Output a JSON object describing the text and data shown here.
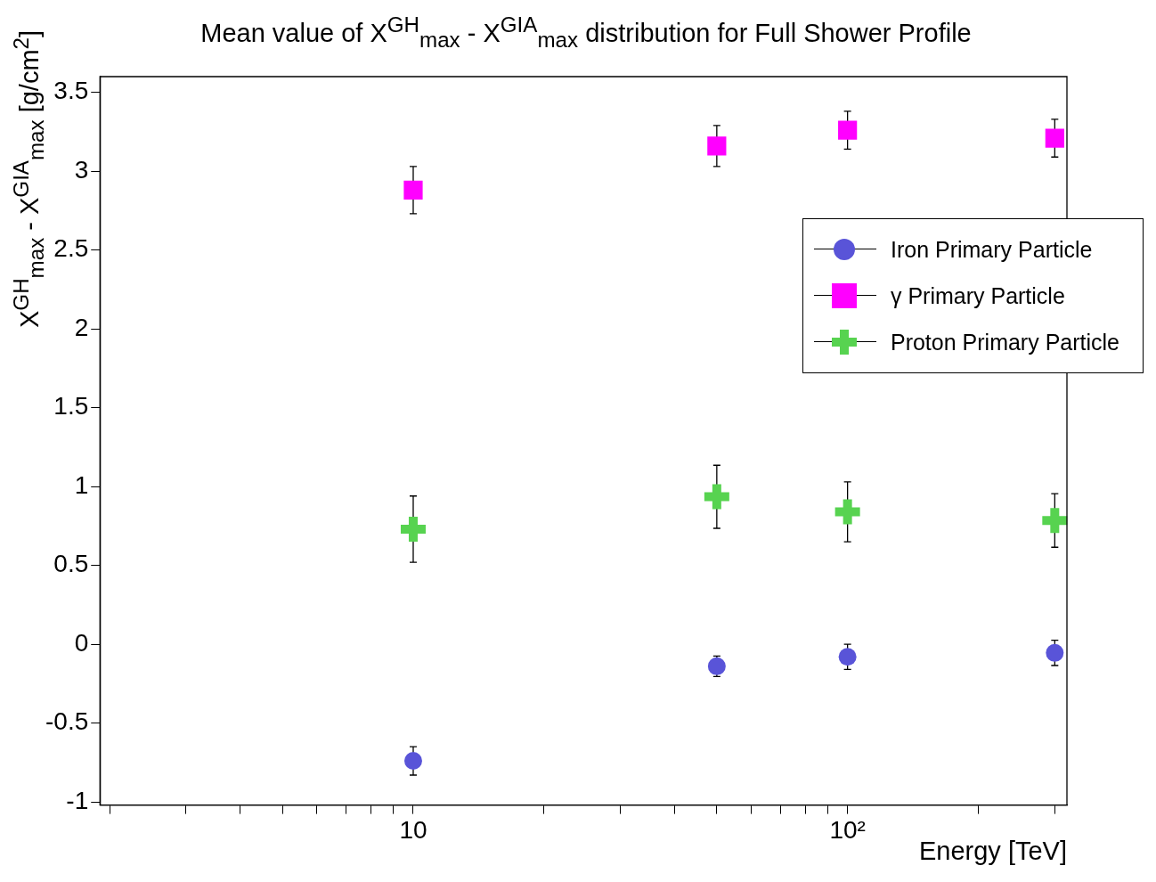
{
  "chart_data": {
    "type": "scatter",
    "title": "Mean value of X$^{GH}$$_{max}$ - X$^{GIA}$$_{max}$ distribution for Full Shower Profile",
    "xlabel": "Energy [TeV]",
    "ylabel": "X$^{GH}$$_{max}$ - X$^{GIA}$$_{max}$ [g/cm$^{2}$]",
    "x": [
      10,
      50,
      100,
      300
    ],
    "series": [
      {
        "name": "Iron Primary Particle",
        "color": "#5954d8",
        "marker": "circle",
        "values": [
          -0.74,
          -0.14,
          -0.08,
          -0.055
        ],
        "errors": [
          0.09,
          0.065,
          0.08,
          0.08
        ]
      },
      {
        "name": "γ Primary Particle",
        "color": "#ff00ff",
        "marker": "square",
        "values": [
          2.88,
          3.16,
          3.26,
          3.21
        ],
        "errors": [
          0.15,
          0.13,
          0.12,
          0.12
        ]
      },
      {
        "name": "Proton Primary Particle",
        "color": "#57d350",
        "marker": "cross",
        "values": [
          0.73,
          0.935,
          0.84,
          0.785
        ],
        "errors": [
          0.21,
          0.2,
          0.19,
          0.17
        ]
      }
    ],
    "log": "x",
    "xlim": [
      1.9,
      320
    ],
    "xticks": [
      {
        "value": 2,
        "label": null
      },
      {
        "value": 3,
        "label": null
      },
      {
        "value": 4,
        "label": null
      },
      {
        "value": 5,
        "label": null
      },
      {
        "value": 6,
        "label": null
      },
      {
        "value": 7,
        "label": null
      },
      {
        "value": 8,
        "label": null
      },
      {
        "value": 9,
        "label": null
      },
      10,
      {
        "value": 20,
        "label": null
      },
      {
        "value": 30,
        "label": null
      },
      {
        "value": 40,
        "label": null
      },
      {
        "value": 50,
        "label": null
      },
      {
        "value": 60,
        "label": null
      },
      {
        "value": 70,
        "label": null
      },
      {
        "value": 80,
        "label": null
      },
      {
        "value": 90,
        "label": null
      },
      {
        "value": 100,
        "label": "10²"
      },
      {
        "value": 200,
        "label": null
      },
      {
        "value": 300,
        "label": null
      }
    ],
    "ylim": [
      -1.02,
      3.6
    ],
    "yticks": [
      -1,
      -0.5,
      0,
      0.5,
      1,
      1.5,
      2,
      2.5,
      3,
      3.5
    ],
    "grid": false,
    "legend": "top right"
  }
}
